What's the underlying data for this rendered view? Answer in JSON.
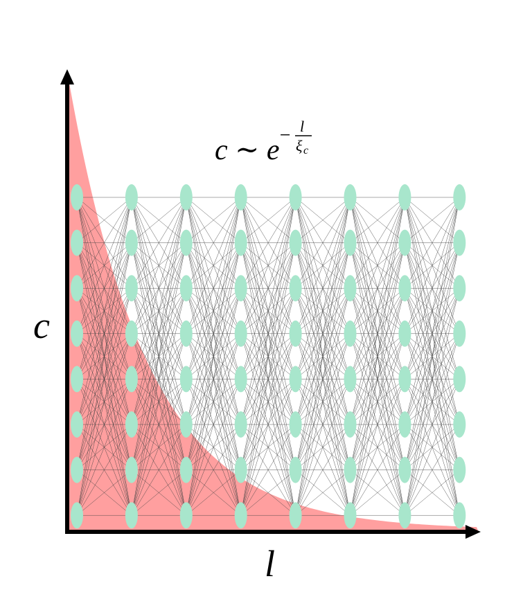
{
  "axes": {
    "y_label": "c",
    "x_label": "l"
  },
  "formula": {
    "base": "c ∼ e",
    "sign": "−",
    "numerator": "l",
    "denominator": "ξ",
    "subscript": "c"
  }
}
